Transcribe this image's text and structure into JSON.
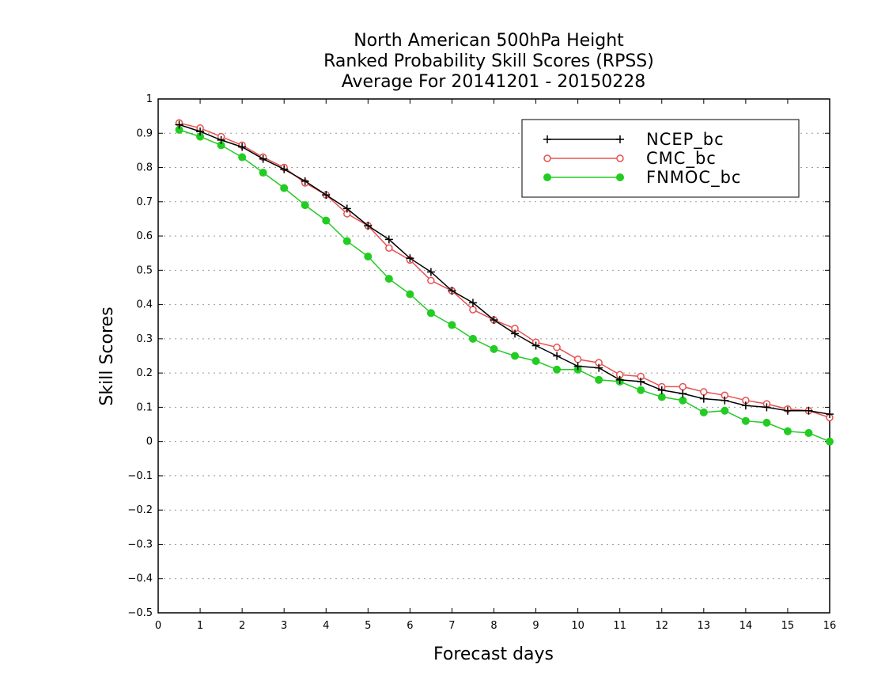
{
  "chart_data": {
    "type": "line",
    "title": [
      "North American 500hPa Height",
      "Ranked Probability Skill Scores (RPSS)",
      "Average For 20141201 - 20150228"
    ],
    "xlabel": "Forecast days",
    "ylabel": "Skill Scores",
    "xlim": [
      0,
      16
    ],
    "ylim": [
      -0.5,
      1
    ],
    "xticks": [
      "0",
      "1",
      "2",
      "3",
      "4",
      "5",
      "6",
      "7",
      "8",
      "9",
      "10",
      "11",
      "12",
      "13",
      "14",
      "15",
      "16"
    ],
    "yticks": [
      "−0.5",
      "−0.4",
      "−0.3",
      "−0.2",
      "−0.1",
      "0",
      "0.1",
      "0.2",
      "0.3",
      "0.4",
      "0.5",
      "0.6",
      "0.7",
      "0.8",
      "0.9",
      "1"
    ],
    "grid": "horizontal-dotted",
    "legend_position": "top-right",
    "x": [
      0.5,
      1,
      1.5,
      2,
      2.5,
      3,
      3.5,
      4,
      4.5,
      5,
      5.5,
      6,
      6.5,
      7,
      7.5,
      8,
      8.5,
      9,
      9.5,
      10,
      10.5,
      11,
      11.5,
      12,
      12.5,
      13,
      13.5,
      14,
      14.5,
      15,
      15.5,
      16
    ],
    "series": [
      {
        "name": "NCEP_bc",
        "color": "#000000",
        "marker": "plus",
        "values": [
          0.925,
          0.905,
          0.88,
          0.86,
          0.825,
          0.795,
          0.76,
          0.72,
          0.68,
          0.63,
          0.59,
          0.535,
          0.495,
          0.44,
          0.405,
          0.355,
          0.315,
          0.28,
          0.25,
          0.22,
          0.215,
          0.18,
          0.175,
          0.15,
          0.14,
          0.125,
          0.12,
          0.105,
          0.1,
          0.09,
          0.09,
          0.08
        ]
      },
      {
        "name": "CMC_bc",
        "color": "#e85050",
        "marker": "open-circle",
        "values": [
          0.93,
          0.915,
          0.89,
          0.865,
          0.83,
          0.8,
          0.755,
          0.72,
          0.665,
          0.63,
          0.565,
          0.53,
          0.47,
          0.44,
          0.385,
          0.355,
          0.33,
          0.29,
          0.275,
          0.24,
          0.23,
          0.195,
          0.19,
          0.16,
          0.16,
          0.145,
          0.135,
          0.12,
          0.11,
          0.095,
          0.09,
          0.07
        ]
      },
      {
        "name": "FNMOC_bc",
        "color": "#22cc22",
        "marker": "filled-circle",
        "values": [
          0.91,
          0.89,
          0.865,
          0.83,
          0.785,
          0.74,
          0.69,
          0.645,
          0.585,
          0.54,
          0.475,
          0.43,
          0.375,
          0.34,
          0.3,
          0.27,
          0.25,
          0.235,
          0.21,
          0.21,
          0.18,
          0.175,
          0.15,
          0.13,
          0.12,
          0.085,
          0.09,
          0.06,
          0.055,
          0.03,
          0.025,
          0.0
        ]
      }
    ]
  }
}
